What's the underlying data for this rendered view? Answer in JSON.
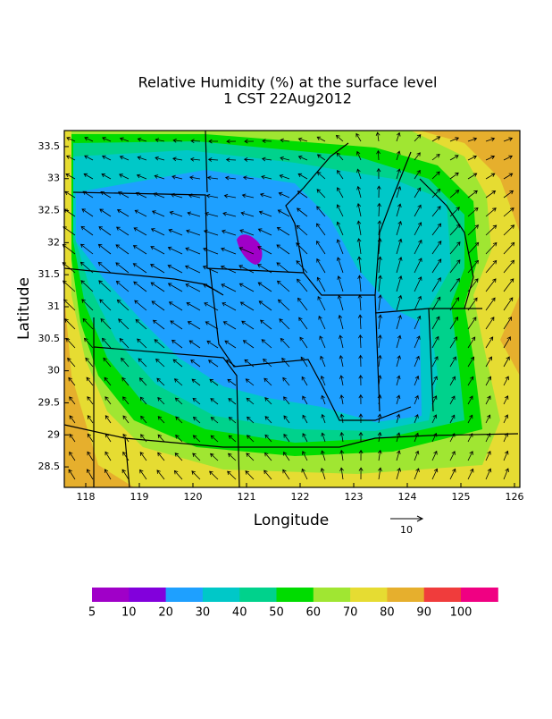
{
  "title": [
    "Relative Humidity (%) at the surface level",
    "1 CST 22Aug2012"
  ],
  "map": {
    "xlabel": "Longitude",
    "ylabel": "Latitude",
    "xlim": [
      117.6,
      126.1
    ],
    "ylim": [
      28.18,
      33.75
    ],
    "xticks": [
      118,
      119,
      120,
      121,
      122,
      123,
      124,
      125,
      126
    ],
    "yticks": [
      28.5,
      29,
      29.5,
      30,
      30.5,
      31,
      31.5,
      32,
      32.5,
      33,
      33.5
    ],
    "vector_reference": 10
  },
  "colorbar": {
    "levels": [
      5,
      10,
      20,
      30,
      40,
      50,
      60,
      70,
      80,
      90,
      100
    ],
    "colors": [
      "#a000c8",
      "#8200dc",
      "#1ea0ff",
      "#00c8c8",
      "#00d28c",
      "#00dc00",
      "#a0e632",
      "#e6dc32",
      "#e6af2d",
      "#f03c3c",
      "#f00082"
    ]
  }
}
